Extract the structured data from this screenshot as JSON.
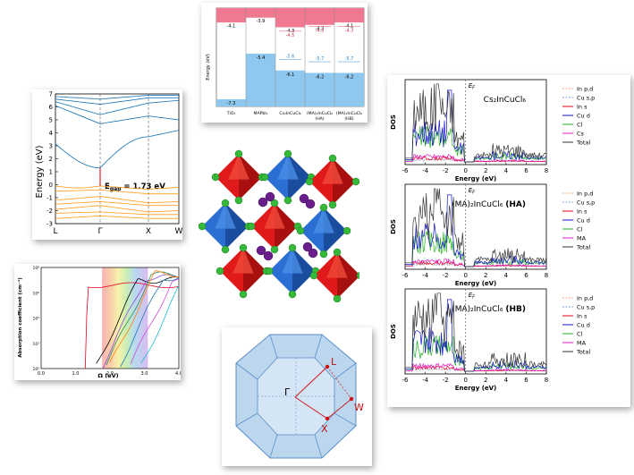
{
  "band_alignment": {
    "ylabel": "Energy (eV)",
    "materials": [
      {
        "name": "TiO₂",
        "cbm": -4.1,
        "vbm": -7.3
      },
      {
        "name": "MAPbI₃",
        "cbm": -3.9,
        "vbm": -5.4
      },
      {
        "name": "Cs₂InCuCl₆",
        "cbm": -4.3,
        "cbm2": -4.5,
        "vbm2": -5.6,
        "vbm": -6.1
      },
      {
        "name": "(MA)₂InCuCl₆",
        "sub": "(HA)",
        "cbm": -4.2,
        "cbm2": -4.3,
        "vbm2": -5.7,
        "vbm": -6.2
      },
      {
        "name": "(MA)₂InCuCl₆",
        "sub": "(HB)",
        "cbm": -4.1,
        "cbm2": -4.3,
        "vbm2": -5.7,
        "vbm": -6.2
      }
    ],
    "colors": {
      "cb": "#f07890",
      "vb": "#8fc8ee"
    }
  },
  "band_structure": {
    "ylabel": "Energy (eV)",
    "gap_label": "E",
    "gap_sub": "gap",
    "gap_value": " = 1.73 eV",
    "kpoints": [
      "L",
      "Γ",
      "X",
      "W"
    ],
    "yticks": [
      "7",
      "6",
      "5",
      "4",
      "3",
      "2",
      "1",
      "0",
      "-1",
      "-2",
      "-3"
    ],
    "ylim": [
      -3,
      7
    ],
    "colors": {
      "conduction": "#1f77b4",
      "valence": "#ff9f1a",
      "gap": "#d62728"
    }
  },
  "absorption": {
    "ylabel": "Absorption coefficient (cm⁻¹)",
    "xlabel": "Ω (eV)",
    "xticks": [
      "0.0",
      "1.0",
      "2.0",
      "3.0",
      "4.0"
    ],
    "yticks": [
      "10⁸",
      "10⁶",
      "10⁴",
      "10²",
      "10⁰"
    ],
    "xlim": [
      0,
      4
    ],
    "series_colors": [
      "#e8001c",
      "#000000",
      "#8c4bd6",
      "#2e8b57",
      "#ff7f0e",
      "#1f77b4",
      "#d44bd6",
      "#17becf"
    ]
  },
  "dos": {
    "ylabel": "DOS",
    "xlabel": "Energy (eV)",
    "xticks": [
      "-6",
      "-4",
      "-2",
      "0",
      "2",
      "4",
      "6",
      "8"
    ],
    "ef_label": "E",
    "ef_sub": "F",
    "panels": [
      {
        "title": "Cs₂InCuCl₆",
        "bold": "",
        "legend": [
          "In p,d",
          "Cu s,p",
          "In s",
          "Cu d",
          "Cl",
          "Cs",
          "Total"
        ]
      },
      {
        "title": "(MA)₂InCuCl₆ ",
        "bold": "(HA)",
        "legend": [
          "In p,d",
          "Cu s,p",
          "In s",
          "Cu d",
          "Cl",
          "MA",
          "Total"
        ]
      },
      {
        "title": "(MA)₂InCuCl₆ ",
        "bold": "(HB)",
        "legend": [
          "In p,d",
          "Cu s,p",
          "In s",
          "Cu d",
          "Cl",
          "MA",
          "Total"
        ]
      }
    ],
    "legend_colors": [
      "#f4a07a",
      "#7aa6e8",
      "#e8001c",
      "#1414c8",
      "#22b022",
      "#e01ec8",
      "#333333"
    ]
  },
  "brillouin_zone": {
    "points": [
      "L",
      "Γ",
      "W",
      "X"
    ],
    "colors": {
      "face": "#bcd6ee",
      "edge": "#5a8fc8",
      "path": "#d01010"
    }
  }
}
